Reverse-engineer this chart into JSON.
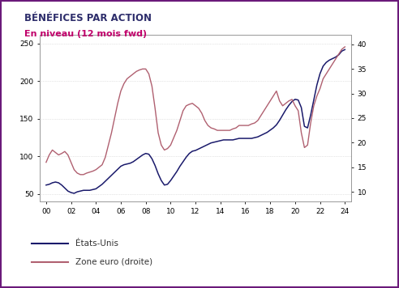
{
  "title": "BÉNÉFICES PAR ACTION",
  "subtitle": "En niveau (12 mois fwd)",
  "title_color": "#2d2d6b",
  "subtitle_color": "#c0006a",
  "background_color": "#ffffff",
  "border_color": "#6b1a7a",
  "left_ylim": [
    40,
    262
  ],
  "right_ylim": [
    8,
    42
  ],
  "left_yticks": [
    50,
    100,
    150,
    200,
    250
  ],
  "right_yticks": [
    10,
    15,
    20,
    25,
    30,
    35,
    40
  ],
  "xticks": [
    0,
    2,
    4,
    6,
    8,
    10,
    12,
    14,
    16,
    18,
    20,
    22,
    24
  ],
  "xlabels": [
    "00",
    "02",
    "04",
    "06",
    "08",
    "10",
    "12",
    "14",
    "16",
    "18",
    "20",
    "22",
    "24"
  ],
  "us_color": "#1a1a6b",
  "euro_color": "#b06070",
  "legend_us": "États-Unis",
  "legend_euro": "Zone euro (droite)",
  "top_bar_color": "#2d0a4e",
  "us_data": [
    [
      0.0,
      62
    ],
    [
      0.25,
      63
    ],
    [
      0.5,
      65
    ],
    [
      0.75,
      66
    ],
    [
      1.0,
      65
    ],
    [
      1.25,
      62
    ],
    [
      1.5,
      58
    ],
    [
      1.75,
      54
    ],
    [
      2.0,
      52
    ],
    [
      2.25,
      51
    ],
    [
      2.5,
      53
    ],
    [
      2.75,
      54
    ],
    [
      3.0,
      55
    ],
    [
      3.25,
      55
    ],
    [
      3.5,
      55
    ],
    [
      3.75,
      56
    ],
    [
      4.0,
      57
    ],
    [
      4.25,
      60
    ],
    [
      4.5,
      63
    ],
    [
      4.75,
      67
    ],
    [
      5.0,
      71
    ],
    [
      5.25,
      75
    ],
    [
      5.5,
      79
    ],
    [
      5.75,
      83
    ],
    [
      6.0,
      87
    ],
    [
      6.25,
      89
    ],
    [
      6.5,
      90
    ],
    [
      6.75,
      91
    ],
    [
      7.0,
      93
    ],
    [
      7.25,
      96
    ],
    [
      7.5,
      99
    ],
    [
      7.75,
      102
    ],
    [
      8.0,
      104
    ],
    [
      8.25,
      103
    ],
    [
      8.5,
      97
    ],
    [
      8.75,
      88
    ],
    [
      9.0,
      77
    ],
    [
      9.25,
      68
    ],
    [
      9.5,
      62
    ],
    [
      9.75,
      63
    ],
    [
      10.0,
      68
    ],
    [
      10.25,
      74
    ],
    [
      10.5,
      80
    ],
    [
      10.75,
      87
    ],
    [
      11.0,
      93
    ],
    [
      11.25,
      99
    ],
    [
      11.5,
      104
    ],
    [
      11.75,
      107
    ],
    [
      12.0,
      108
    ],
    [
      12.25,
      110
    ],
    [
      12.5,
      112
    ],
    [
      12.75,
      114
    ],
    [
      13.0,
      116
    ],
    [
      13.25,
      118
    ],
    [
      13.5,
      119
    ],
    [
      13.75,
      120
    ],
    [
      14.0,
      121
    ],
    [
      14.25,
      122
    ],
    [
      14.5,
      122
    ],
    [
      14.75,
      122
    ],
    [
      15.0,
      122
    ],
    [
      15.25,
      123
    ],
    [
      15.5,
      124
    ],
    [
      15.75,
      124
    ],
    [
      16.0,
      124
    ],
    [
      16.25,
      124
    ],
    [
      16.5,
      124
    ],
    [
      16.75,
      125
    ],
    [
      17.0,
      126
    ],
    [
      17.25,
      128
    ],
    [
      17.5,
      130
    ],
    [
      17.75,
      132
    ],
    [
      18.0,
      135
    ],
    [
      18.25,
      138
    ],
    [
      18.5,
      142
    ],
    [
      18.75,
      148
    ],
    [
      19.0,
      155
    ],
    [
      19.25,
      162
    ],
    [
      19.5,
      168
    ],
    [
      19.75,
      173
    ],
    [
      20.0,
      176
    ],
    [
      20.25,
      175
    ],
    [
      20.5,
      165
    ],
    [
      20.75,
      140
    ],
    [
      21.0,
      138
    ],
    [
      21.25,
      155
    ],
    [
      21.5,
      175
    ],
    [
      21.75,
      195
    ],
    [
      22.0,
      210
    ],
    [
      22.25,
      220
    ],
    [
      22.5,
      225
    ],
    [
      22.75,
      228
    ],
    [
      23.0,
      230
    ],
    [
      23.25,
      232
    ],
    [
      23.5,
      235
    ],
    [
      23.75,
      240
    ],
    [
      24.0,
      242
    ]
  ],
  "euro_data": [
    [
      0.0,
      16.0
    ],
    [
      0.25,
      17.5
    ],
    [
      0.5,
      18.5
    ],
    [
      0.75,
      18.0
    ],
    [
      1.0,
      17.5
    ],
    [
      1.25,
      17.8
    ],
    [
      1.5,
      18.2
    ],
    [
      1.75,
      17.5
    ],
    [
      2.0,
      16.0
    ],
    [
      2.25,
      14.5
    ],
    [
      2.5,
      13.8
    ],
    [
      2.75,
      13.5
    ],
    [
      3.0,
      13.5
    ],
    [
      3.25,
      13.8
    ],
    [
      3.5,
      14.0
    ],
    [
      3.75,
      14.2
    ],
    [
      4.0,
      14.5
    ],
    [
      4.25,
      15.0
    ],
    [
      4.5,
      15.5
    ],
    [
      4.75,
      17.0
    ],
    [
      5.0,
      19.5
    ],
    [
      5.25,
      22.0
    ],
    [
      5.5,
      25.0
    ],
    [
      5.75,
      28.0
    ],
    [
      6.0,
      30.5
    ],
    [
      6.25,
      32.0
    ],
    [
      6.5,
      33.0
    ],
    [
      6.75,
      33.5
    ],
    [
      7.0,
      34.0
    ],
    [
      7.25,
      34.5
    ],
    [
      7.5,
      34.8
    ],
    [
      7.75,
      35.0
    ],
    [
      8.0,
      35.0
    ],
    [
      8.25,
      34.0
    ],
    [
      8.5,
      31.5
    ],
    [
      8.75,
      27.0
    ],
    [
      9.0,
      22.0
    ],
    [
      9.25,
      19.5
    ],
    [
      9.5,
      18.5
    ],
    [
      9.75,
      18.8
    ],
    [
      10.0,
      19.5
    ],
    [
      10.25,
      21.0
    ],
    [
      10.5,
      22.5
    ],
    [
      10.75,
      24.5
    ],
    [
      11.0,
      26.5
    ],
    [
      11.25,
      27.5
    ],
    [
      11.5,
      27.8
    ],
    [
      11.75,
      28.0
    ],
    [
      12.0,
      27.5
    ],
    [
      12.25,
      27.0
    ],
    [
      12.5,
      26.0
    ],
    [
      12.75,
      24.5
    ],
    [
      13.0,
      23.5
    ],
    [
      13.25,
      23.0
    ],
    [
      13.5,
      22.8
    ],
    [
      13.75,
      22.5
    ],
    [
      14.0,
      22.5
    ],
    [
      14.25,
      22.5
    ],
    [
      14.5,
      22.5
    ],
    [
      14.75,
      22.5
    ],
    [
      15.0,
      22.8
    ],
    [
      15.25,
      23.0
    ],
    [
      15.5,
      23.5
    ],
    [
      15.75,
      23.5
    ],
    [
      16.0,
      23.5
    ],
    [
      16.25,
      23.5
    ],
    [
      16.5,
      23.8
    ],
    [
      16.75,
      24.0
    ],
    [
      17.0,
      24.5
    ],
    [
      17.25,
      25.5
    ],
    [
      17.5,
      26.5
    ],
    [
      17.75,
      27.5
    ],
    [
      18.0,
      28.5
    ],
    [
      18.25,
      29.5
    ],
    [
      18.5,
      30.5
    ],
    [
      18.75,
      28.5
    ],
    [
      19.0,
      27.5
    ],
    [
      19.25,
      28.0
    ],
    [
      19.5,
      28.5
    ],
    [
      19.75,
      28.8
    ],
    [
      20.0,
      27.5
    ],
    [
      20.25,
      26.5
    ],
    [
      20.5,
      22.0
    ],
    [
      20.75,
      19.0
    ],
    [
      21.0,
      19.5
    ],
    [
      21.25,
      24.0
    ],
    [
      21.5,
      27.5
    ],
    [
      21.75,
      29.5
    ],
    [
      22.0,
      31.0
    ],
    [
      22.25,
      33.0
    ],
    [
      22.5,
      34.0
    ],
    [
      22.75,
      35.0
    ],
    [
      23.0,
      36.0
    ],
    [
      23.25,
      37.0
    ],
    [
      23.5,
      38.0
    ],
    [
      23.75,
      39.0
    ],
    [
      24.0,
      39.5
    ]
  ]
}
